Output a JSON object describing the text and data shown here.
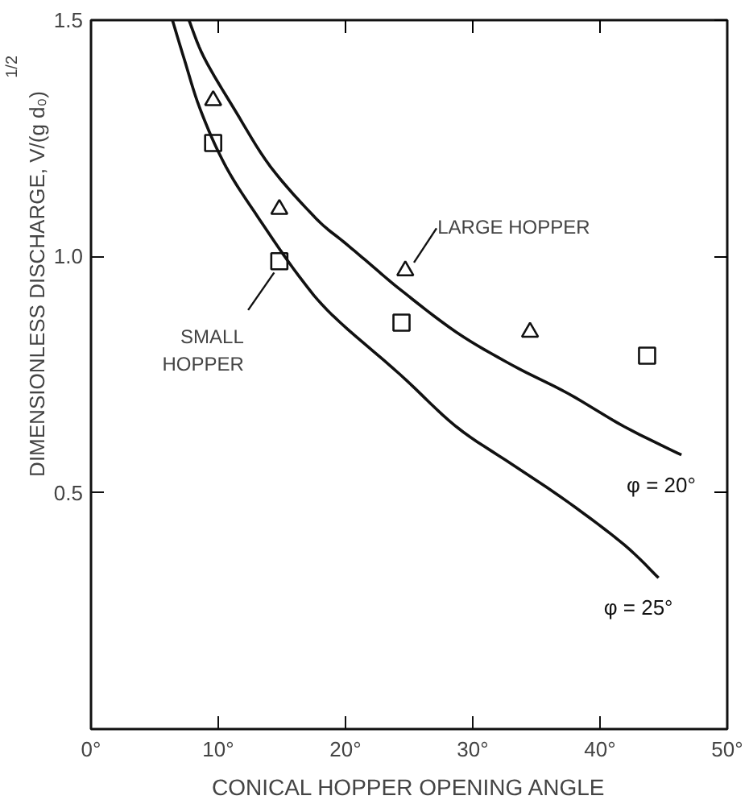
{
  "chart_data": {
    "type": "line",
    "xlabel": "CONICAL HOPPER OPENING ANGLE",
    "ylabel": "DIMENSIONLESS DISCHARGE, V/(g d₀)$^{1/2}$",
    "xlim": [
      0,
      50
    ],
    "ylim": [
      0,
      1.5
    ],
    "xticks": [
      {
        "value": 0,
        "label": "0°"
      },
      {
        "value": 10,
        "label": "10°"
      },
      {
        "value": 20,
        "label": "20°"
      },
      {
        "value": 30,
        "label": "30°"
      },
      {
        "value": 40,
        "label": "40°"
      },
      {
        "value": 50,
        "label": "50°"
      }
    ],
    "yticks": [
      0.5,
      {
        "value": 1,
        "label": "1.0"
      },
      1.5
    ],
    "grid": false,
    "series": [
      {
        "name": "φ = 20°",
        "color": "#111111",
        "line_style": "solid",
        "x": [
          7.7,
          8.9,
          11.3,
          14.1,
          17.7,
          19.9,
          22.1,
          24.3,
          28.7,
          33.1,
          37.5,
          41.9,
          46.4
        ],
        "values": [
          1.5,
          1.42,
          1.31,
          1.19,
          1.08,
          1.03,
          0.98,
          0.93,
          0.84,
          0.77,
          0.71,
          0.64,
          0.58
        ]
      },
      {
        "name": "φ = 25°",
        "color": "#111111",
        "line_style": "solid",
        "x": [
          6.4,
          7.3,
          8.6,
          10.6,
          13.2,
          16.3,
          19.0,
          24.3,
          28.7,
          33.1,
          37.5,
          41.9,
          44.6
        ],
        "values": [
          1.5,
          1.42,
          1.31,
          1.19,
          1.08,
          0.96,
          0.875,
          0.75,
          0.64,
          0.56,
          0.48,
          0.39,
          0.32
        ]
      },
      {
        "type": "scatter",
        "marker": "triangle",
        "color": "#111111",
        "x": [
          9.6,
          14.8,
          24.7,
          34.5
        ],
        "values": [
          1.33,
          1.1,
          0.97,
          0.84
        ]
      },
      {
        "type": "scatter",
        "marker": "square",
        "color": "#111111",
        "x": [
          9.6,
          14.8,
          24.4,
          43.7
        ],
        "values": [
          1.24,
          0.99,
          0.86,
          0.79
        ]
      }
    ],
    "annotations": [
      {
        "text": "LARGE HOPPER",
        "x": 24.7,
        "y": 0.97
      },
      {
        "text": "SMALL HOPPER",
        "x": 14.8,
        "y": 0.99
      }
    ]
  }
}
